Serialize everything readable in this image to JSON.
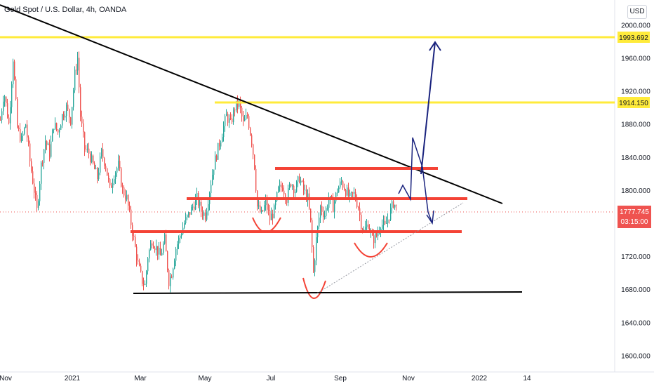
{
  "header": {
    "title": "Gold Spot / U.S. Dollar, 4h, OANDA",
    "currency_button": "USD"
  },
  "colors": {
    "up": "#26a69a",
    "down": "#ef5350",
    "yellow_line": "#ffeb3b",
    "red_line": "#f44336",
    "trend_line": "#000000",
    "arrow": "#1a237e",
    "price_tag": "#ef5350"
  },
  "chart_data": {
    "type": "candlestick",
    "title": "Gold Spot / U.S. Dollar, 4h, OANDA",
    "ylim": [
      1580,
      2030
    ],
    "yticks": [
      1600,
      1640,
      1680,
      1720,
      1760,
      1800,
      1840,
      1880,
      1920,
      1960,
      2000
    ],
    "ytick_labels": [
      "1600.000",
      "1640.000",
      "1680.000",
      "1720.000",
      "1760.000",
      "1800.000",
      "1840.000",
      "1880.000",
      "1920.000",
      "1960.000",
      "2000.000"
    ],
    "xtick_labels": [
      "Nov",
      "2021",
      "Mar",
      "May",
      "Jul",
      "Sep",
      "Nov",
      "2022",
      "14"
    ],
    "price_points": [
      [
        0,
        1885
      ],
      [
        5,
        1920
      ],
      [
        12,
        1880
      ],
      [
        18,
        1960
      ],
      [
        24,
        1875
      ],
      [
        30,
        1860
      ],
      [
        36,
        1880
      ],
      [
        42,
        1835
      ],
      [
        48,
        1800
      ],
      [
        52,
        1775
      ],
      [
        58,
        1830
      ],
      [
        64,
        1860
      ],
      [
        70,
        1845
      ],
      [
        76,
        1880
      ],
      [
        82,
        1870
      ],
      [
        88,
        1890
      ],
      [
        94,
        1900
      ],
      [
        100,
        1885
      ],
      [
        106,
        1940
      ],
      [
        110,
        1960
      ],
      [
        114,
        1890
      ],
      [
        120,
        1850
      ],
      [
        126,
        1845
      ],
      [
        132,
        1830
      ],
      [
        138,
        1815
      ],
      [
        144,
        1845
      ],
      [
        150,
        1830
      ],
      [
        156,
        1800
      ],
      [
        162,
        1820
      ],
      [
        168,
        1830
      ],
      [
        174,
        1800
      ],
      [
        180,
        1790
      ],
      [
        186,
        1760
      ],
      [
        190,
        1740
      ],
      [
        196,
        1710
      ],
      [
        202,
        1690
      ],
      [
        206,
        1685
      ],
      [
        210,
        1720
      ],
      [
        216,
        1740
      ],
      [
        222,
        1730
      ],
      [
        228,
        1720
      ],
      [
        234,
        1740
      ],
      [
        240,
        1690
      ],
      [
        244,
        1700
      ],
      [
        250,
        1730
      ],
      [
        256,
        1745
      ],
      [
        262,
        1760
      ],
      [
        268,
        1770
      ],
      [
        274,
        1780
      ],
      [
        280,
        1790
      ],
      [
        286,
        1775
      ],
      [
        292,
        1770
      ],
      [
        298,
        1800
      ],
      [
        304,
        1830
      ],
      [
        310,
        1850
      ],
      [
        316,
        1870
      ],
      [
        322,
        1890
      ],
      [
        328,
        1880
      ],
      [
        334,
        1900
      ],
      [
        340,
        1905
      ],
      [
        346,
        1880
      ],
      [
        352,
        1890
      ],
      [
        358,
        1860
      ],
      [
        362,
        1830
      ],
      [
        366,
        1780
      ],
      [
        372,
        1770
      ],
      [
        378,
        1785
      ],
      [
        384,
        1765
      ],
      [
        390,
        1775
      ],
      [
        396,
        1800
      ],
      [
        402,
        1805
      ],
      [
        408,
        1790
      ],
      [
        414,
        1810
      ],
      [
        420,
        1800
      ],
      [
        426,
        1815
      ],
      [
        432,
        1800
      ],
      [
        438,
        1790
      ],
      [
        442,
        1760
      ],
      [
        446,
        1700
      ],
      [
        450,
        1740
      ],
      [
        456,
        1780
      ],
      [
        462,
        1770
      ],
      [
        468,
        1790
      ],
      [
        474,
        1780
      ],
      [
        480,
        1800
      ],
      [
        486,
        1810
      ],
      [
        492,
        1800
      ],
      [
        498,
        1790
      ],
      [
        504,
        1795
      ],
      [
        510,
        1780
      ],
      [
        514,
        1760
      ],
      [
        518,
        1750
      ],
      [
        524,
        1760
      ],
      [
        530,
        1740
      ],
      [
        536,
        1745
      ],
      [
        542,
        1760
      ],
      [
        548,
        1755
      ],
      [
        554,
        1770
      ],
      [
        560,
        1785
      ],
      [
        565,
        1778
      ]
    ],
    "levels": [
      {
        "name": "1993.692",
        "price": 1993.692,
        "color": "yellow"
      },
      {
        "name": "1914.150",
        "price": 1914.15,
        "color": "yellow"
      }
    ],
    "current_price": {
      "value": "1777.745",
      "countdown": "03:15:00"
    }
  }
}
